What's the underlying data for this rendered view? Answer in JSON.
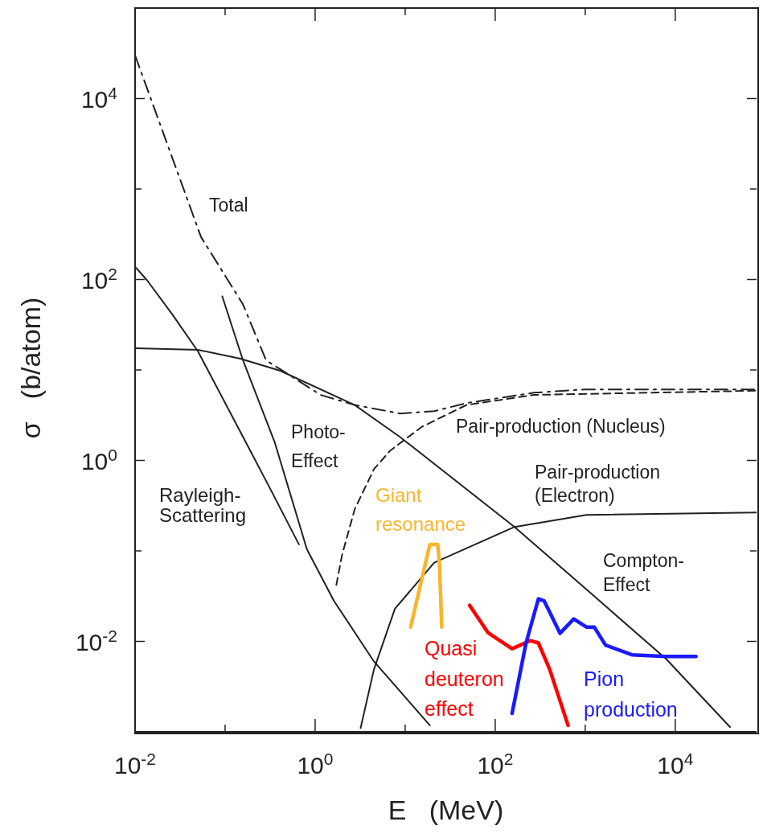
{
  "chart_data": {
    "type": "line",
    "xlabel": "E   (MeV)",
    "ylabel": "σ   (b/atom)",
    "log": "xy",
    "grid": false,
    "marker": "none",
    "xlim": [
      0.01,
      80000
    ],
    "ylim": [
      0.001,
      100000
    ],
    "xticks": [
      {
        "value": 0.01,
        "label": "10$^{-2}$"
      },
      {
        "value": 0.1,
        "label": null
      },
      {
        "value": 1,
        "label": "10$^{0}$"
      },
      {
        "value": 10,
        "label": null
      },
      {
        "value": 100,
        "label": "10$^{2}$"
      },
      {
        "value": 1000,
        "label": null
      },
      {
        "value": 10000,
        "label": "10$^{4}$"
      }
    ],
    "yticks": [
      {
        "value": 0.01,
        "label": "10$^{-2}$"
      },
      {
        "value": 0.1,
        "label": null
      },
      {
        "value": 1,
        "label": "10$^{0}$"
      },
      {
        "value": 10,
        "label": null
      },
      {
        "value": 100,
        "label": "10$^{2}$"
      },
      {
        "value": 1000,
        "label": null
      },
      {
        "value": 10000,
        "label": "10$^{4}$"
      }
    ],
    "series": [
      {
        "name": "Total",
        "color": "#222222",
        "line_style": "dashdot",
        "x": [
          0.01,
          0.054,
          0.158,
          0.285,
          1.15,
          2.75,
          8.8,
          21,
          48,
          270,
          1000,
          80000
        ],
        "values": [
          30000,
          295,
          53,
          12.8,
          5.3,
          4.1,
          3.3,
          3.5,
          4.3,
          5.6,
          6.1,
          6.1
        ]
      },
      {
        "name": "Rayleigh-\nScattering",
        "color": "#222222",
        "line_style": "solid",
        "x": [
          0.01,
          0.0136,
          0.026,
          0.05,
          0.171,
          0.316,
          0.66
        ],
        "values": [
          138,
          98,
          41,
          16,
          1.57,
          0.49,
          0.118
        ]
      },
      {
        "name": "Photo-\nEffect",
        "color": "#222222",
        "line_style": "solid",
        "x": [
          0.093,
          0.158,
          0.357,
          0.81,
          1.62,
          4.5,
          18.8
        ],
        "values": [
          65,
          12.8,
          1.57,
          0.104,
          0.028,
          0.006,
          0.00118
        ]
      },
      {
        "name": "Compton-\nEffect",
        "color": "#222222",
        "line_style": "solid",
        "x": [
          0.01,
          0.05,
          0.148,
          0.41,
          2.75,
          8.8,
          164,
          1030,
          7900,
          40600
        ],
        "values": [
          17.4,
          16.7,
          13.3,
          9.8,
          4.1,
          1.81,
          0.184,
          0.0376,
          0.0064,
          0.00113
        ]
      },
      {
        "name": "Pair-production (Nucleus)",
        "color": "#222222",
        "line_style": "dashed",
        "x": [
          1.72,
          1.99,
          2.75,
          4.5,
          6.8,
          15.3,
          48,
          270,
          80000
        ],
        "values": [
          0.042,
          0.09,
          0.289,
          0.8,
          1.28,
          2.35,
          4.1,
          5.3,
          5.9
        ]
      },
      {
        "name": "Pair-production\n(Electron)",
        "color": "#222222",
        "line_style": "solid",
        "x": [
          3.2,
          4.5,
          7.7,
          21,
          164,
          1030,
          80000
        ],
        "values": [
          0.0011,
          0.0049,
          0.023,
          0.074,
          0.184,
          0.25,
          0.266
        ]
      },
      {
        "name": "Giant\nresonance",
        "color": "#f9b52b",
        "line_style": "solid",
        "x": [
          11.5,
          18.8,
          23,
          24,
          25.5
        ],
        "values": [
          0.0144,
          0.118,
          0.118,
          0.074,
          0.0144
        ]
      },
      {
        "name": "Quasi\ndeuteron\neffect",
        "color": "#ff0000",
        "line_style": "solid",
        "x": [
          52,
          83,
          154,
          247,
          302,
          403,
          645
        ],
        "values": [
          0.025,
          0.0125,
          0.0083,
          0.0102,
          0.0096,
          0.0049,
          0.00118
        ]
      },
      {
        "name": "Pion\nproduction",
        "color": "#1a1aff",
        "line_style": "solid",
        "x": [
          154,
          220,
          302,
          350,
          525,
          745,
          1030,
          1260,
          1680,
          3300,
          7900,
          17000
        ],
        "values": [
          0.0016,
          0.0096,
          0.0295,
          0.028,
          0.0123,
          0.0177,
          0.0144,
          0.0144,
          0.0091,
          0.0071,
          0.0068,
          0.0068
        ]
      }
    ]
  }
}
